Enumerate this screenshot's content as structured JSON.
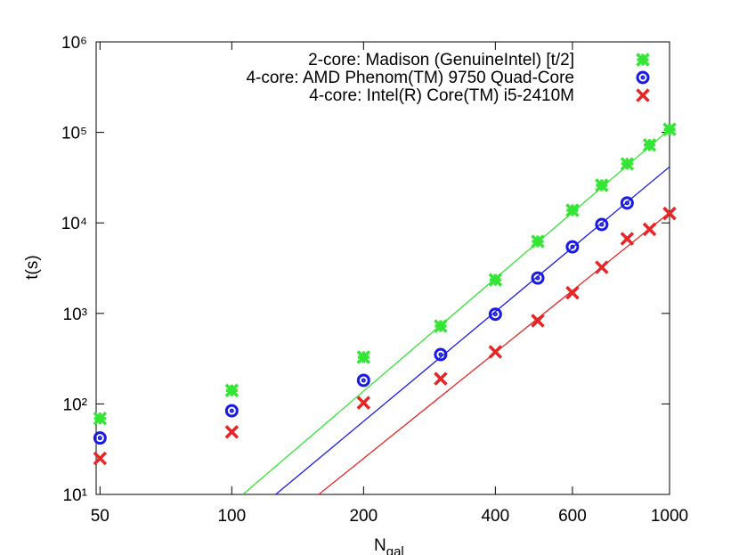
{
  "chart_data": {
    "type": "scatter",
    "ylabel": "t(s)",
    "xlabel": "N",
    "xlabel_subscript": "gal",
    "log_x": true,
    "log_y": true,
    "xlim": [
      49,
      1000
    ],
    "ylim": [
      10,
      1000000
    ],
    "xticks": [
      50,
      100,
      200,
      400,
      600,
      1000
    ],
    "yticks": [
      {
        "value": 10,
        "label": "10¹"
      },
      {
        "value": 100,
        "label": "10²"
      },
      {
        "value": 1000,
        "label": "10³"
      },
      {
        "value": 10000,
        "label": "10⁴"
      },
      {
        "value": 100000,
        "label": "10⁵"
      },
      {
        "value": 1000000,
        "label": "10⁶"
      }
    ],
    "legend_position": "top-right",
    "series": [
      {
        "name": "2-core: Madison (GenuineIntel) [t/2]",
        "color": "#33e633",
        "marker": "star",
        "x": [
          50,
          100,
          200,
          300,
          400,
          500,
          600,
          700,
          800,
          900,
          1000
        ],
        "values": [
          69,
          141,
          328,
          725,
          2350,
          6240,
          13800,
          26000,
          44900,
          72600,
          108000
        ]
      },
      {
        "name": "4-core: AMD Phenom(TM) 9750 Quad-Core",
        "color": "#1a1ae6",
        "marker": "circle",
        "x": [
          50,
          100,
          200,
          300,
          400,
          500,
          600,
          700,
          800
        ],
        "values": [
          42,
          84,
          182,
          351,
          980,
          2460,
          5440,
          9600,
          16600
        ]
      },
      {
        "name": "4-core: Intel(R) Core(TM) i5-2410M",
        "color": "#e62626",
        "marker": "x",
        "x": [
          50,
          100,
          200,
          300,
          400,
          500,
          600,
          700,
          800,
          900,
          1000
        ],
        "values": [
          25,
          49,
          103,
          190,
          376,
          830,
          1690,
          3230,
          6680,
          8500,
          12700
        ]
      }
    ],
    "fits": [
      {
        "color": "#33e633",
        "x": [
          106,
          1000
        ],
        "values": [
          10,
          108000
        ]
      },
      {
        "color": "#1a1ae6",
        "x": [
          126,
          1000
        ],
        "values": [
          10,
          41700
        ]
      },
      {
        "color": "#e62626",
        "x": [
          158,
          1000
        ],
        "values": [
          10,
          13000
        ]
      }
    ]
  }
}
